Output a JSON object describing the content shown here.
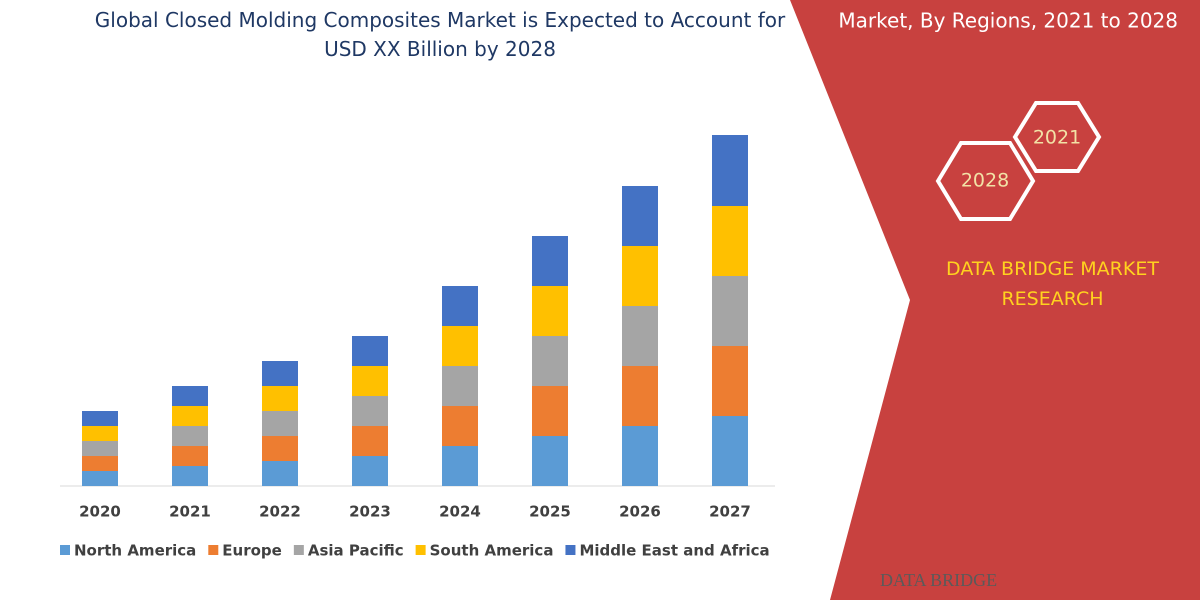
{
  "chart_data": {
    "type": "stacked_bar",
    "title": "Global Closed Molding Composites Market is Expected to Account for USD XX Billion by 2028",
    "categories": [
      "2020",
      "2021",
      "2022",
      "2023",
      "2024",
      "2025",
      "2026",
      "2027"
    ],
    "series": [
      {
        "name": "North America",
        "color": "#5b9bd5",
        "values": [
          15,
          20,
          25,
          30,
          40,
          50,
          60,
          70
        ]
      },
      {
        "name": "Europe",
        "color": "#ed7d31",
        "values": [
          15,
          20,
          25,
          30,
          40,
          50,
          60,
          70
        ]
      },
      {
        "name": "Asia Pacific",
        "color": "#a5a5a5",
        "values": [
          15,
          20,
          25,
          30,
          40,
          50,
          60,
          70
        ]
      },
      {
        "name": "South America",
        "color": "#ffc000",
        "values": [
          15,
          20,
          25,
          30,
          40,
          50,
          60,
          70
        ]
      },
      {
        "name": "Middle East and Africa",
        "color": "#4472c4",
        "values": [
          15,
          20,
          25,
          30,
          40,
          50,
          60,
          71
        ]
      }
    ]
  },
  "panel": {
    "heading": "Market, By Regions, 2021 to 2028",
    "hex_years": [
      "2021",
      "2028"
    ],
    "brand": "DATA BRIDGE MARKET RESEARCH",
    "logo": "DATA BRIDGE"
  }
}
